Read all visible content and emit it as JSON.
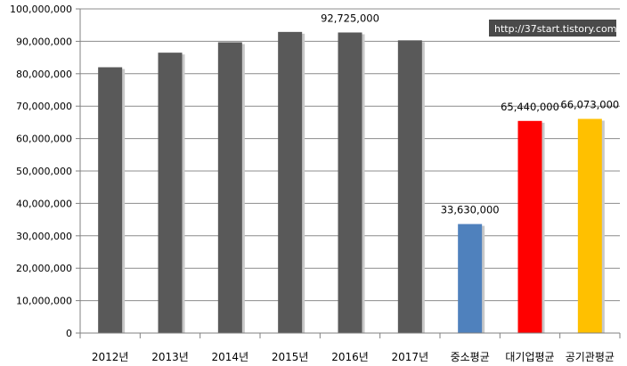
{
  "chart_data": {
    "type": "bar",
    "categories": [
      "2012년",
      "2013년",
      "2014년",
      "2015년",
      "2016년",
      "2017년",
      "중소평균",
      "대기업평균",
      "공기관평균"
    ],
    "values": [
      82000000,
      86500000,
      89700000,
      92900000,
      92725000,
      90300000,
      33630000,
      65440000,
      66073000
    ],
    "data_labels": [
      "",
      "",
      "",
      "",
      "92,725,000",
      "",
      "33,630,000",
      "65,440,000",
      "66,073,000"
    ],
    "bar_colors": [
      "#595959",
      "#595959",
      "#595959",
      "#595959",
      "#595959",
      "#595959",
      "#4f81bd",
      "#ff0000",
      "#ffc000"
    ],
    "yticks": [
      "0",
      "10,000,000",
      "20,000,000",
      "30,000,000",
      "40,000,000",
      "50,000,000",
      "60,000,000",
      "70,000,000",
      "80,000,000",
      "90,000,000",
      "100,000,000"
    ],
    "ylim": [
      0,
      100000000
    ],
    "grid": true,
    "legend": "none",
    "title": "",
    "xlabel": "",
    "ylabel": ""
  },
  "watermark": "http://37start.tistory.com"
}
